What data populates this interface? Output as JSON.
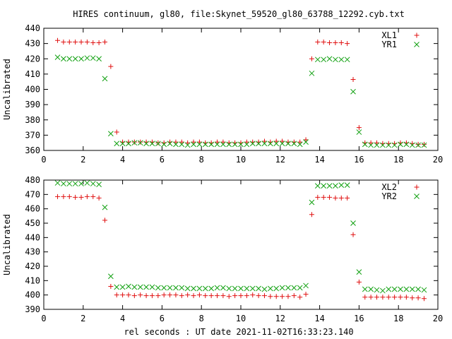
{
  "title": "HIRES continuum, gl80, file:Skynet_59520_gl80_63788_12292.cyb.txt",
  "xlabel": "rel seconds : UT date 2021-11-02T16:33:23.140",
  "colors": {
    "red": "#e01010",
    "green": "#10a010"
  },
  "chart_data": [
    {
      "type": "scatter",
      "xlim": [
        0,
        20
      ],
      "ylim": [
        360,
        440
      ],
      "xticks": [
        0,
        2,
        4,
        6,
        8,
        10,
        12,
        14,
        16,
        18,
        20
      ],
      "yticks": [
        360,
        370,
        380,
        390,
        400,
        410,
        420,
        430,
        440
      ],
      "ylabel": "Uncalibrated",
      "legend_position": "top-right",
      "grid": false,
      "series": [
        {
          "name": "XL1",
          "marker": "plus",
          "color": "#e01010",
          "x": [
            0.7,
            1.0,
            1.3,
            1.6,
            1.9,
            2.2,
            2.5,
            2.8,
            3.1,
            3.4,
            3.7,
            4.0,
            4.3,
            4.6,
            4.9,
            5.2,
            5.5,
            5.8,
            6.1,
            6.4,
            6.7,
            7.0,
            7.3,
            7.6,
            7.9,
            8.2,
            8.5,
            8.8,
            9.1,
            9.4,
            9.7,
            10.0,
            10.3,
            10.6,
            10.9,
            11.2,
            11.5,
            11.8,
            12.1,
            12.4,
            12.7,
            13.0,
            13.3,
            13.6,
            13.9,
            14.2,
            14.5,
            14.8,
            15.1,
            15.4,
            15.7,
            16.0,
            16.3,
            16.6,
            16.9,
            17.2,
            17.5,
            17.8,
            18.1,
            18.4,
            18.7,
            19.0,
            19.3
          ],
          "y": [
            432,
            431,
            431,
            431,
            431,
            431,
            430.5,
            430.5,
            431,
            415,
            372,
            365.5,
            365.5,
            365.5,
            365.5,
            365.5,
            365.5,
            365,
            365,
            365.5,
            365.5,
            365.5,
            365,
            365.5,
            365.5,
            365,
            365,
            365.5,
            365.5,
            365,
            365,
            365,
            365.5,
            365.5,
            365.5,
            366,
            365.5,
            366,
            366,
            365.5,
            365.5,
            365.5,
            367,
            420,
            431,
            431,
            430.5,
            430.5,
            430.5,
            430,
            406.5,
            375,
            365,
            365,
            365,
            364.5,
            364.5,
            364.5,
            365,
            365,
            364.5,
            364,
            364
          ]
        },
        {
          "name": "YR1",
          "marker": "cross",
          "color": "#10a010",
          "x": [
            0.7,
            1.0,
            1.3,
            1.6,
            1.9,
            2.2,
            2.5,
            2.8,
            3.1,
            3.4,
            3.7,
            4.0,
            4.3,
            4.6,
            4.9,
            5.2,
            5.5,
            5.8,
            6.1,
            6.4,
            6.7,
            7.0,
            7.3,
            7.6,
            7.9,
            8.2,
            8.5,
            8.8,
            9.1,
            9.4,
            9.7,
            10.0,
            10.3,
            10.6,
            10.9,
            11.2,
            11.5,
            11.8,
            12.1,
            12.4,
            12.7,
            13.0,
            13.3,
            13.6,
            13.9,
            14.2,
            14.5,
            14.8,
            15.1,
            15.4,
            15.7,
            16.0,
            16.3,
            16.6,
            16.9,
            17.2,
            17.5,
            17.8,
            18.1,
            18.4,
            18.7,
            19.0,
            19.3
          ],
          "y": [
            421,
            420,
            420,
            420,
            420,
            420.5,
            420.5,
            420,
            407,
            371,
            364.5,
            364.5,
            364.5,
            365,
            365,
            364.5,
            364.5,
            364.5,
            364,
            364.5,
            364,
            364,
            363.5,
            364,
            364,
            364,
            364,
            364,
            364,
            364,
            364,
            364,
            364,
            364.5,
            364.5,
            364.5,
            364.5,
            364.5,
            364.5,
            364.5,
            364.5,
            364,
            365.5,
            410.5,
            419.5,
            419.5,
            420,
            419.5,
            419.5,
            419.5,
            398.5,
            372,
            364,
            363.5,
            363.5,
            363.5,
            363.5,
            363.5,
            364,
            364,
            363.5,
            363.5,
            363.5
          ]
        }
      ]
    },
    {
      "type": "scatter",
      "xlim": [
        0,
        20
      ],
      "ylim": [
        390,
        480
      ],
      "xticks": [
        0,
        2,
        4,
        6,
        8,
        10,
        12,
        14,
        16,
        18,
        20
      ],
      "yticks": [
        390,
        400,
        410,
        420,
        430,
        440,
        450,
        460,
        470,
        480
      ],
      "ylabel": "Uncalibrated",
      "legend_position": "top-right",
      "grid": false,
      "series": [
        {
          "name": "XL2",
          "marker": "plus",
          "color": "#e01010",
          "x": [
            0.7,
            1.0,
            1.3,
            1.6,
            1.9,
            2.2,
            2.5,
            2.8,
            3.1,
            3.4,
            3.7,
            4.0,
            4.3,
            4.6,
            4.9,
            5.2,
            5.5,
            5.8,
            6.1,
            6.4,
            6.7,
            7.0,
            7.3,
            7.6,
            7.9,
            8.2,
            8.5,
            8.8,
            9.1,
            9.4,
            9.7,
            10.0,
            10.3,
            10.6,
            10.9,
            11.2,
            11.5,
            11.8,
            12.1,
            12.4,
            12.7,
            13.0,
            13.3,
            13.6,
            13.9,
            14.2,
            14.5,
            14.8,
            15.1,
            15.4,
            15.7,
            16.0,
            16.3,
            16.6,
            16.9,
            17.2,
            17.5,
            17.8,
            18.1,
            18.4,
            18.7,
            19.0,
            19.3
          ],
          "y": [
            468.5,
            468.5,
            468.5,
            468,
            468,
            468.5,
            468.5,
            467.5,
            452,
            406,
            400,
            400,
            400,
            399.5,
            400,
            399.5,
            399.5,
            399.5,
            400,
            400,
            400,
            399.5,
            400,
            399.5,
            400,
            399.5,
            399.5,
            399.5,
            399.5,
            399,
            399.5,
            399.5,
            399.5,
            400,
            399.5,
            399.5,
            399,
            399,
            399,
            399,
            399.5,
            398.5,
            400.5,
            456,
            468,
            468,
            468,
            467.5,
            467.5,
            467.5,
            442,
            409,
            398.5,
            398.5,
            398.5,
            398.5,
            398.5,
            398.5,
            398.5,
            398.5,
            398,
            398,
            397.5
          ]
        },
        {
          "name": "YR2",
          "marker": "cross",
          "color": "#10a010",
          "x": [
            0.7,
            1.0,
            1.3,
            1.6,
            1.9,
            2.2,
            2.5,
            2.8,
            3.1,
            3.4,
            3.7,
            4.0,
            4.3,
            4.6,
            4.9,
            5.2,
            5.5,
            5.8,
            6.1,
            6.4,
            6.7,
            7.0,
            7.3,
            7.6,
            7.9,
            8.2,
            8.5,
            8.8,
            9.1,
            9.4,
            9.7,
            10.0,
            10.3,
            10.6,
            10.9,
            11.2,
            11.5,
            11.8,
            12.1,
            12.4,
            12.7,
            13.0,
            13.3,
            13.6,
            13.9,
            14.2,
            14.5,
            14.8,
            15.1,
            15.4,
            15.7,
            16.0,
            16.3,
            16.6,
            16.9,
            17.2,
            17.5,
            17.8,
            18.1,
            18.4,
            18.7,
            19.0,
            19.3
          ],
          "y": [
            478,
            477.5,
            477.5,
            477.5,
            477.5,
            478,
            477.5,
            477,
            461,
            413,
            405.5,
            405.5,
            406,
            405.5,
            405.5,
            405.5,
            405.5,
            405,
            405,
            405,
            405,
            405,
            404.5,
            404.5,
            404.5,
            404.5,
            404.5,
            405,
            405,
            404.5,
            404.5,
            404.5,
            404.5,
            404.5,
            404.5,
            404,
            404.5,
            404.5,
            405,
            405,
            405,
            405,
            406.5,
            464.5,
            476,
            476,
            476,
            476,
            476.5,
            476.5,
            450,
            416,
            404,
            404,
            403.5,
            403,
            404,
            404,
            404,
            404,
            404,
            404,
            403.5
          ]
        }
      ]
    }
  ]
}
